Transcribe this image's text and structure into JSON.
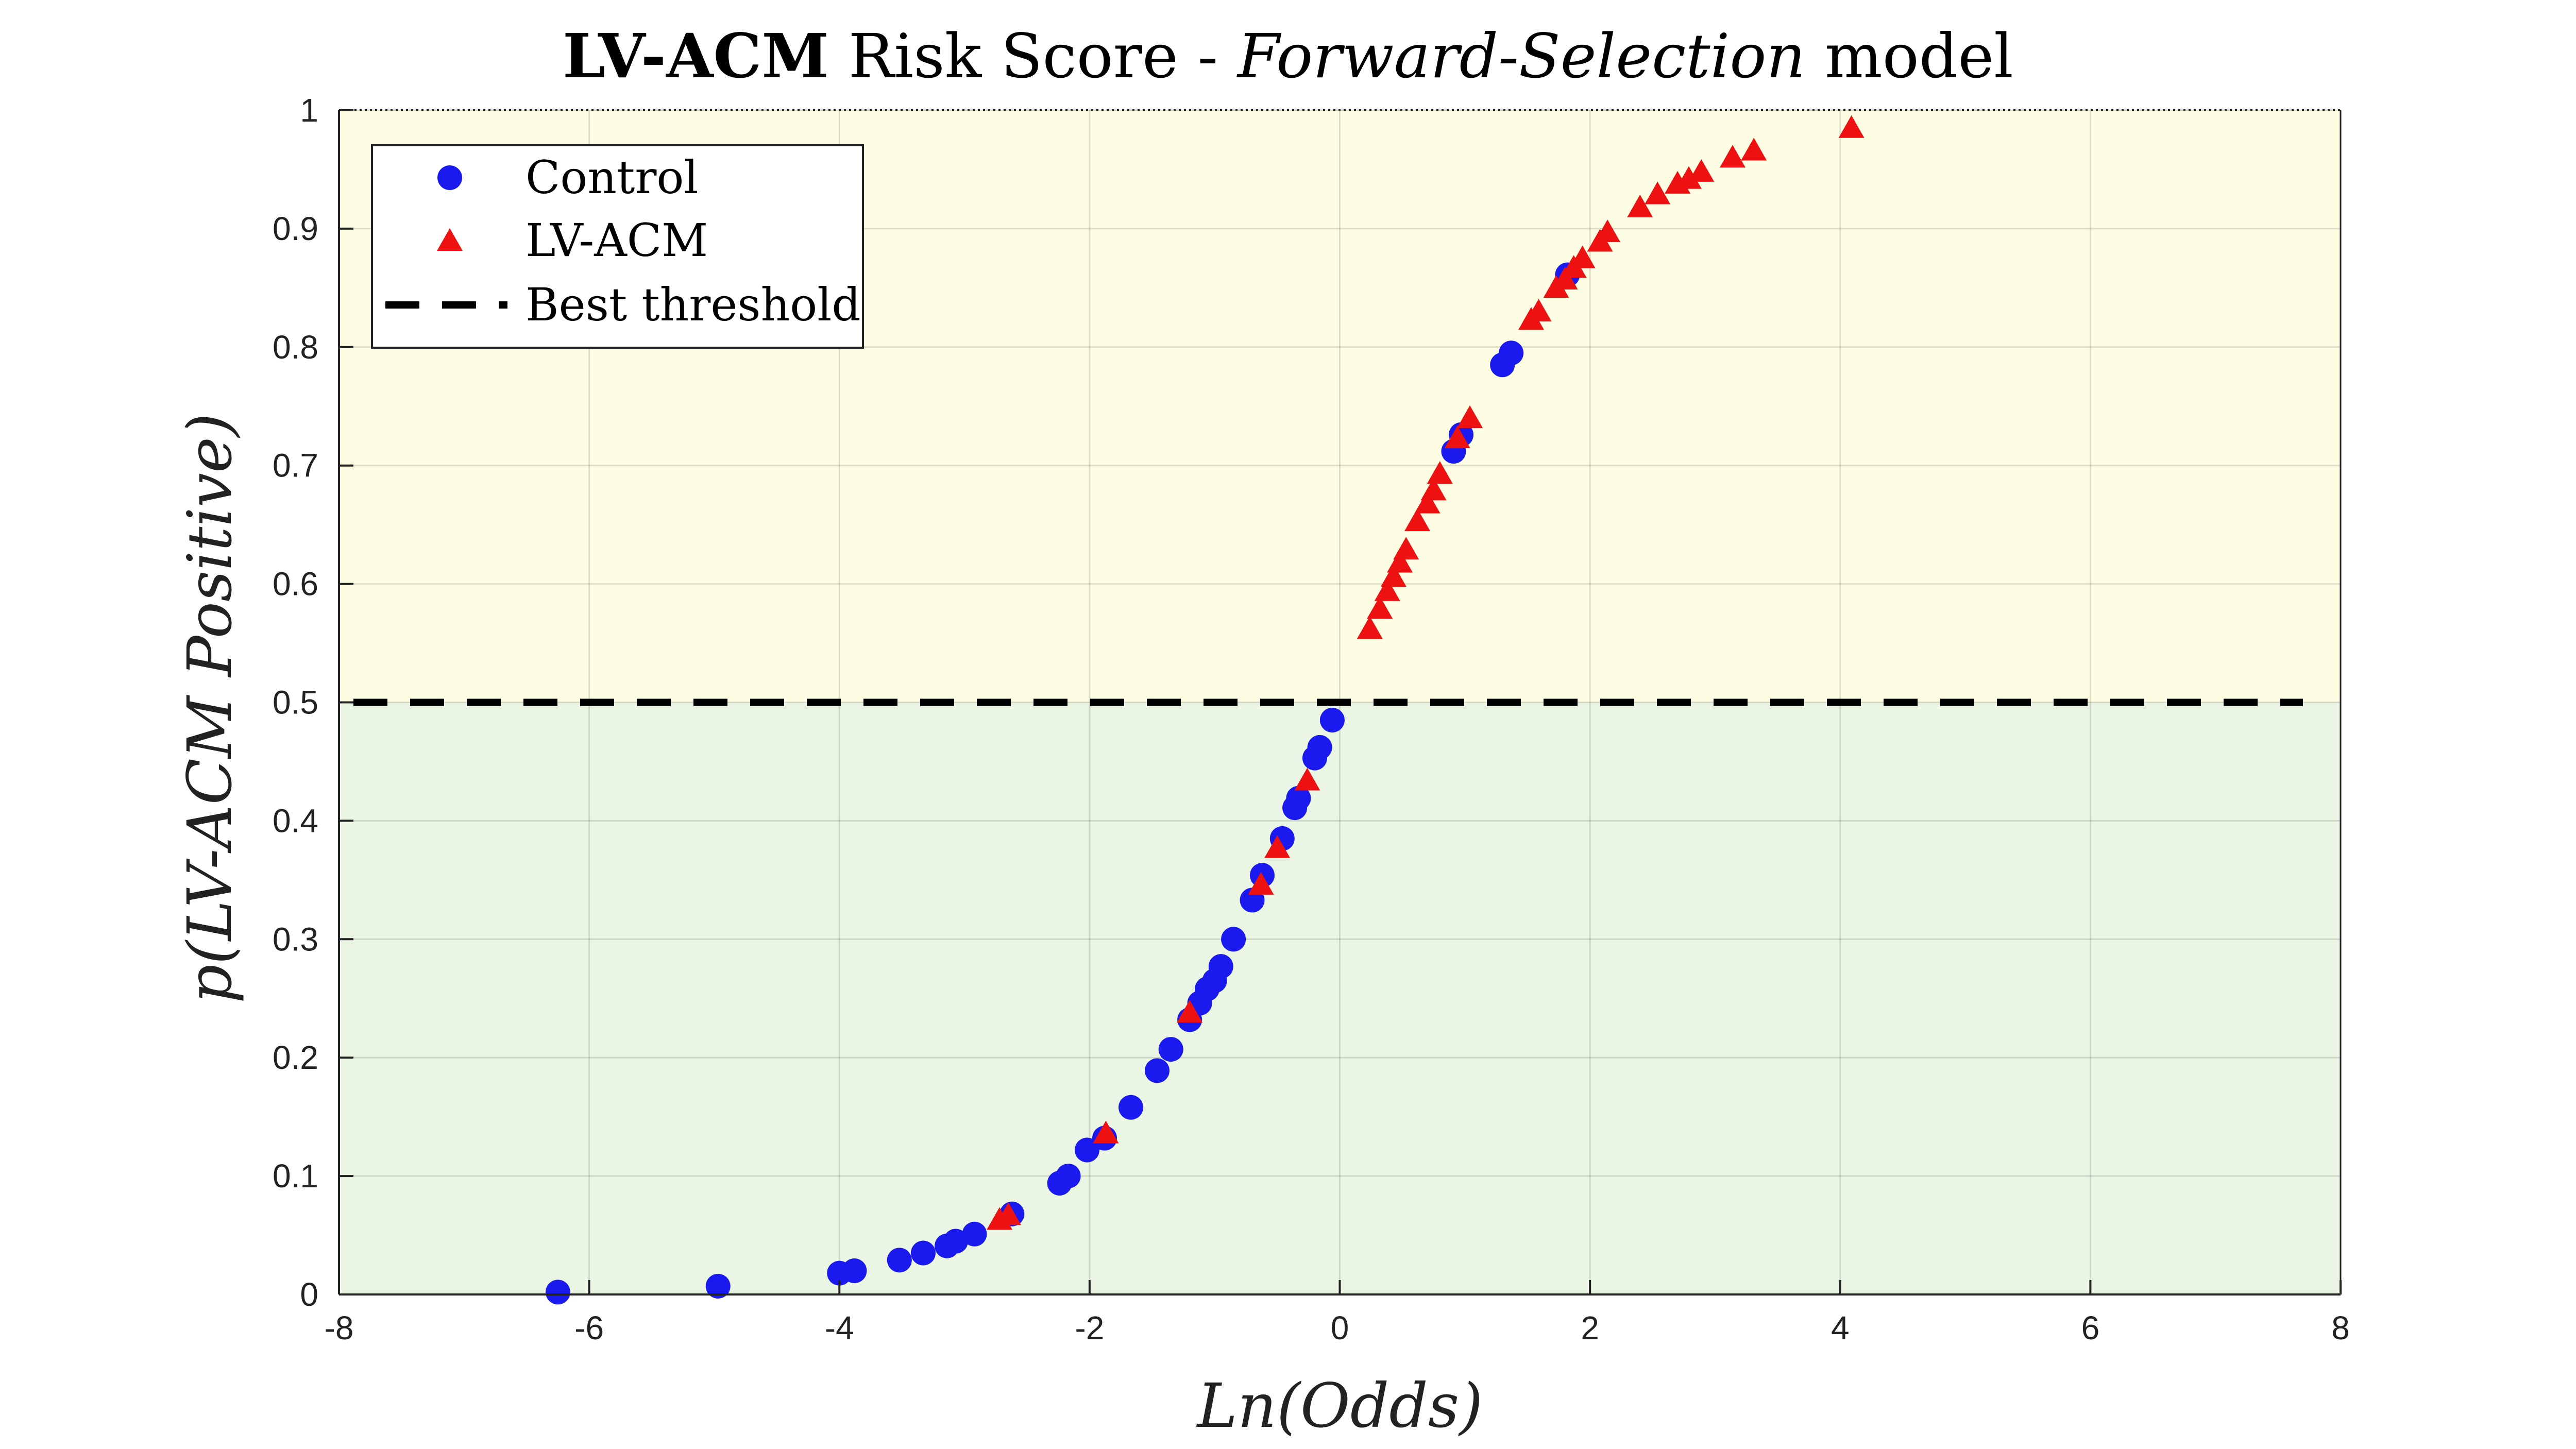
{
  "chart_data": {
    "type": "scatter",
    "title": {
      "bold": "LV-ACM",
      "mid": " Risk Score - ",
      "italic": "Forward-Selection",
      "end": " model"
    },
    "xlabel": "Ln(Odds)",
    "ylabel": "p(LV-ACM Positive)",
    "xlim": [
      -8,
      8
    ],
    "ylim": [
      0,
      1
    ],
    "xticks": [
      "-8",
      "-6",
      "-4",
      "-2",
      "0",
      "2",
      "4",
      "6",
      "8"
    ],
    "yticks": [
      "0",
      "0.1",
      "0.2",
      "0.3",
      "0.4",
      "0.5",
      "0.6",
      "0.7",
      "0.8",
      "0.9",
      "1"
    ],
    "grid": true,
    "legend_position": "top-left",
    "threshold": {
      "name": "Best threshold",
      "y": 0.5,
      "color": "#000000"
    },
    "regions": [
      {
        "ymin": 0.5,
        "ymax": 1.0,
        "color": "#fdfde3"
      },
      {
        "ymin": 0.0,
        "ymax": 0.5,
        "color": "#eaf5e3"
      }
    ],
    "series": [
      {
        "name": "Control",
        "marker": "circle",
        "color": "#1a1aee",
        "x": [
          -6.25,
          -4.97,
          -4.0,
          -3.88,
          -3.52,
          -3.33,
          -3.14,
          -3.07,
          -2.92,
          -2.62,
          -2.24,
          -2.17,
          -2.02,
          -1.88,
          -1.67,
          -1.46,
          -1.35,
          -1.2,
          -1.12,
          -1.06,
          -1.0,
          -0.95,
          -0.85,
          -0.7,
          -0.62,
          -0.46,
          -0.36,
          -0.33,
          -0.2,
          -0.16,
          -0.06,
          0.91,
          0.97,
          1.3,
          1.37,
          1.82
        ],
        "y": [
          0.002,
          0.007,
          0.018,
          0.02,
          0.029,
          0.035,
          0.041,
          0.045,
          0.051,
          0.068,
          0.094,
          0.1,
          0.122,
          0.132,
          0.158,
          0.189,
          0.207,
          0.232,
          0.246,
          0.258,
          0.265,
          0.277,
          0.3,
          0.333,
          0.354,
          0.385,
          0.411,
          0.419,
          0.453,
          0.462,
          0.485,
          0.712,
          0.726,
          0.785,
          0.795,
          0.861
        ]
      },
      {
        "name": "LV-ACM",
        "marker": "triangle",
        "color": "#ee1111",
        "x": [
          -2.72,
          -2.65,
          -1.87,
          -1.2,
          -0.63,
          -0.5,
          -0.26,
          0.24,
          0.32,
          0.38,
          0.43,
          0.48,
          0.53,
          0.62,
          0.7,
          0.75,
          0.8,
          0.94,
          1.04,
          1.53,
          1.59,
          1.73,
          1.8,
          1.87,
          1.94,
          2.08,
          2.14,
          2.4,
          2.54,
          2.7,
          2.79,
          2.89,
          3.14,
          3.31,
          4.09
        ],
        "y": [
          0.062,
          0.066,
          0.135,
          0.237,
          0.345,
          0.376,
          0.433,
          0.561,
          0.578,
          0.593,
          0.605,
          0.617,
          0.628,
          0.652,
          0.667,
          0.678,
          0.692,
          0.722,
          0.739,
          0.822,
          0.829,
          0.849,
          0.856,
          0.866,
          0.874,
          0.888,
          0.896,
          0.917,
          0.928,
          0.937,
          0.941,
          0.947,
          0.959,
          0.965,
          0.984
        ]
      }
    ]
  }
}
